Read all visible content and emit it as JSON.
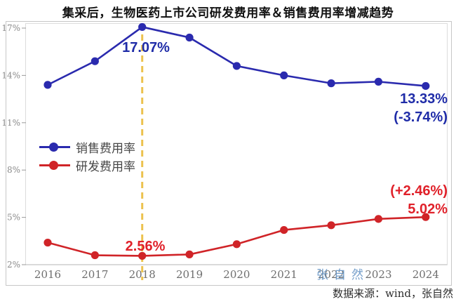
{
  "title": "集采后，生物医药上市公司研发费用率＆销售费用率增减趋势",
  "legend": [
    {
      "label": "销售费用率",
      "color": "#2a2aae"
    },
    {
      "label": "研发费用率",
      "color": "#d02428"
    }
  ],
  "chart_data": {
    "type": "line",
    "categories": [
      "2016",
      "2017",
      "2018",
      "2019",
      "2020",
      "2021",
      "2022",
      "2023",
      "2024"
    ],
    "series": [
      {
        "id": "sales",
        "name": "销售费用率",
        "color": "#2a2aae",
        "values": [
          13.4,
          14.9,
          17.07,
          16.4,
          14.6,
          14.0,
          13.5,
          13.6,
          13.33
        ]
      },
      {
        "id": "rnd",
        "name": "研发费用率",
        "color": "#d02428",
        "values": [
          3.4,
          2.6,
          2.56,
          2.65,
          3.3,
          4.2,
          4.5,
          4.9,
          5.02
        ]
      }
    ],
    "title": "集采后，生物医药上市公司研发费用率＆销售费用率增减趋势",
    "xlabel": "",
    "ylabel": "",
    "ylim": [
      2,
      17
    ],
    "y_ticks": [
      "17%",
      "14%",
      "11%",
      "8%",
      "5%",
      "2%"
    ],
    "y_tick_values": [
      17,
      14,
      11,
      8,
      5,
      2
    ],
    "grid": false,
    "legend_position": "middle-left",
    "highlight_category": "2018",
    "highlight_line_color": "#ecc24e"
  },
  "annotations": {
    "sales_peak_value": "17.07%",
    "sales_end_value": "13.33%",
    "sales_end_change": "(-3.74%)",
    "rnd_end_change": "(+2.46%)",
    "rnd_end_value": "5.02%",
    "rnd_2018_value": "2.56%"
  },
  "watermark": "张自然",
  "source_note": "数据来源：wind，张自然",
  "colors": {
    "sales_line": "#2a2aae",
    "rnd_line": "#d02428",
    "highlight_dashed_line": "#ecc24e",
    "sales_annotation_text": "#1f2ca8",
    "rnd_annotation_text": "#e0212a",
    "watermark_text": "#6896c6"
  }
}
